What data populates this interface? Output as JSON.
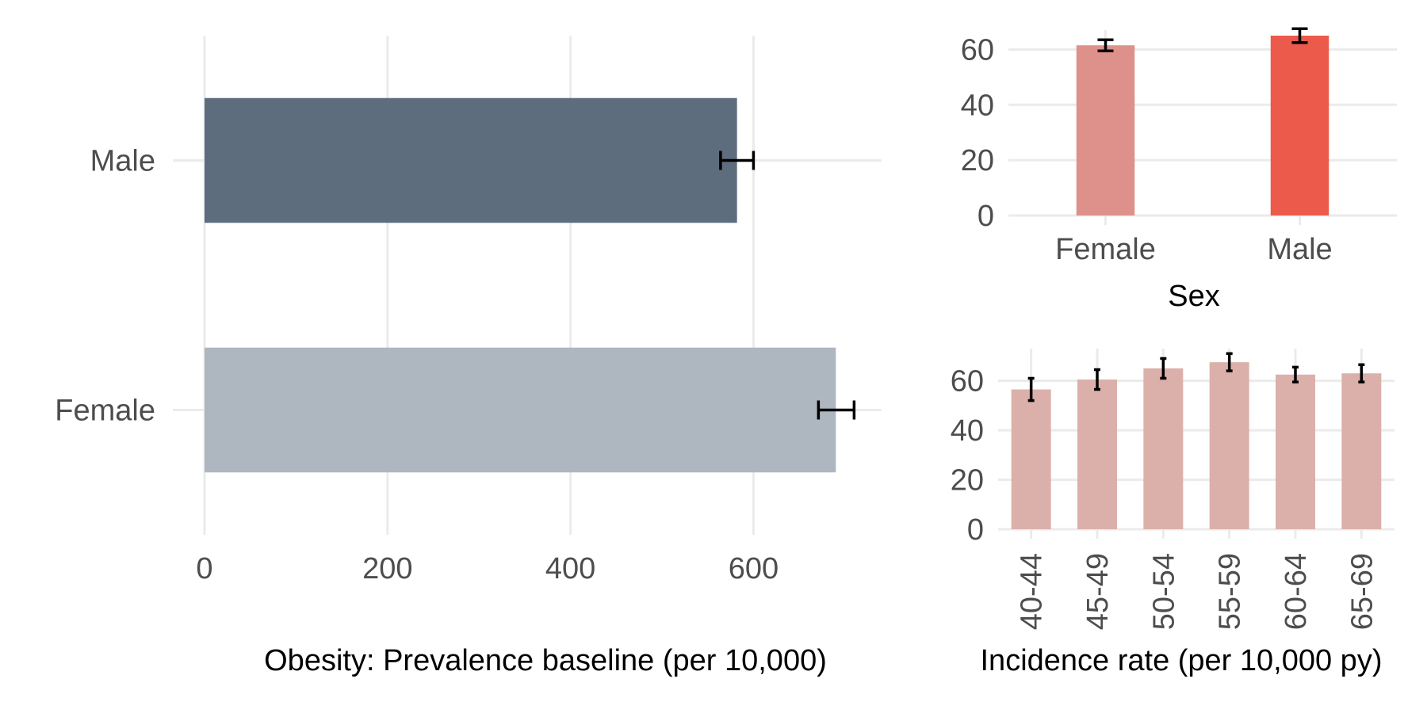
{
  "chart_data": [
    {
      "id": "prevalence",
      "type": "bar",
      "orientation": "horizontal",
      "categories": [
        "Male",
        "Female"
      ],
      "values": [
        582,
        690
      ],
      "error_low": [
        564,
        671
      ],
      "error_high": [
        600,
        710
      ],
      "colors": [
        "#5d6d7e",
        "#aeb6bf"
      ],
      "xlabel": "Obesity: Prevalence baseline (per 10,000)",
      "xlim": [
        0,
        740
      ],
      "xticks": [
        0,
        200,
        400,
        600
      ],
      "grid": true,
      "legend": "none"
    },
    {
      "id": "incidence-sex",
      "type": "bar",
      "categories": [
        "Female",
        "Male"
      ],
      "values": [
        61.5,
        65
      ],
      "error_low": [
        59.5,
        62.5
      ],
      "error_high": [
        63.5,
        67.5
      ],
      "colors": [
        "#dd918a",
        "#ec5a4c"
      ],
      "xlabel": "Sex",
      "ylim": [
        0,
        67
      ],
      "yticks": [
        0,
        20,
        40,
        60
      ],
      "grid": true,
      "legend": "none"
    },
    {
      "id": "incidence-age",
      "type": "bar",
      "categories": [
        "40-44",
        "45-49",
        "50-54",
        "55-59",
        "60-64",
        "65-69"
      ],
      "values": [
        56.5,
        60.5,
        65,
        67.5,
        62.5,
        63
      ],
      "error_low": [
        52,
        56.5,
        61,
        64,
        59.5,
        59.5
      ],
      "error_high": [
        61,
        64.5,
        69,
        71,
        65.5,
        66.5
      ],
      "colors": [
        "#dcb0aa"
      ],
      "xlabel": "Incidence rate (per 10,000 py)",
      "ylim": [
        0,
        73
      ],
      "yticks": [
        0,
        20,
        40,
        60
      ],
      "grid": true,
      "legend": "none"
    }
  ]
}
